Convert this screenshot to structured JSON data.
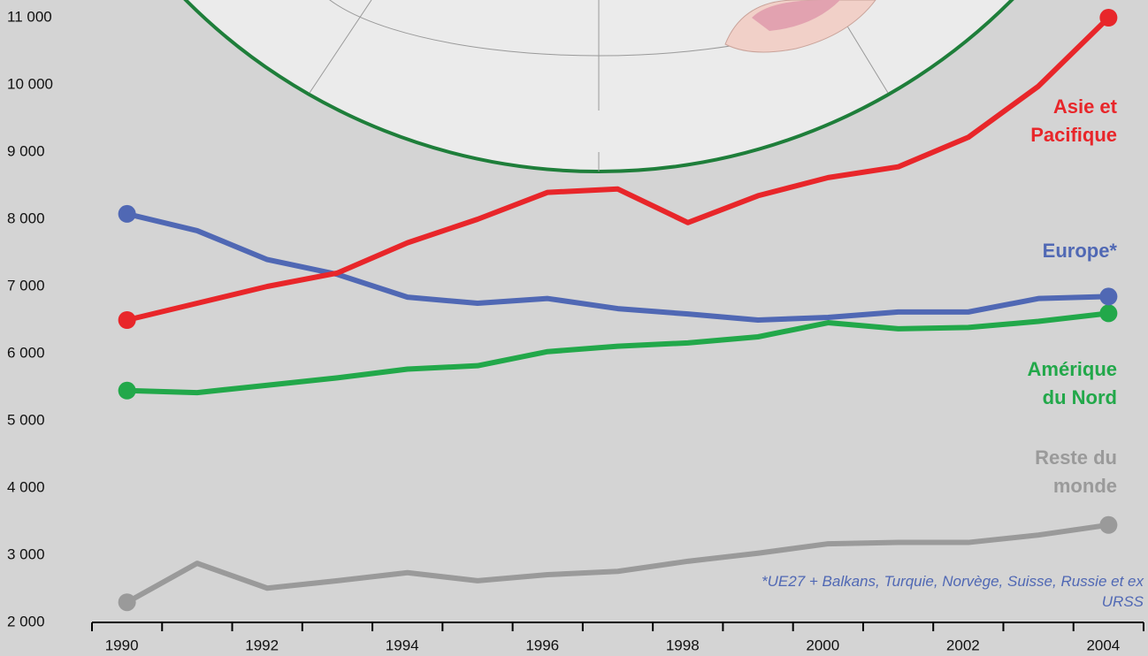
{
  "chart_data": {
    "type": "line",
    "x": [
      1990,
      1991,
      1992,
      1993,
      1994,
      1995,
      1996,
      1997,
      1998,
      1999,
      2000,
      2001,
      2002,
      2003,
      2004
    ],
    "series": [
      {
        "name": "Asie et Pacifique",
        "color": "#e8262a",
        "values": [
          6500,
          6750,
          7000,
          7200,
          7650,
          8000,
          8400,
          8450,
          7950,
          8350,
          8620,
          8780,
          9220,
          9980,
          11000
        ]
      },
      {
        "name": "Europe*",
        "color": "#5068b4",
        "values": [
          8080,
          7830,
          7400,
          7180,
          6840,
          6750,
          6820,
          6670,
          6590,
          6500,
          6540,
          6620,
          6620,
          6820,
          6850
        ]
      },
      {
        "name": "Amérique du Nord",
        "color": "#22a84a",
        "values": [
          5450,
          5420,
          5530,
          5640,
          5770,
          5820,
          6030,
          6110,
          6160,
          6250,
          6460,
          6370,
          6390,
          6480,
          6600
        ]
      },
      {
        "name": "Reste du monde",
        "color": "#9a9a9a",
        "values": [
          2300,
          2880,
          2510,
          2620,
          2740,
          2620,
          2710,
          2760,
          2910,
          3030,
          3170,
          3190,
          3190,
          3300,
          3450
        ]
      }
    ],
    "xlim": [
      1989.5,
      2004.5
    ],
    "xticks": [
      1990,
      1992,
      1994,
      1996,
      1998,
      2000,
      2002,
      2004
    ],
    "ylim": [
      2000,
      11000
    ],
    "yticks": [
      {
        "value": 2000,
        "label": "2 000"
      },
      {
        "value": 3000,
        "label": "3 000"
      },
      {
        "value": 4000,
        "label": "4 000"
      },
      {
        "value": 5000,
        "label": "5 000"
      },
      {
        "value": 6000,
        "label": "6 000"
      },
      {
        "value": 7000,
        "label": "7 000"
      },
      {
        "value": 8000,
        "label": "8 000"
      },
      {
        "value": 9000,
        "label": "9 000"
      },
      {
        "value": 10000,
        "label": "10 000"
      },
      {
        "value": 11000,
        "label": "11 000"
      }
    ],
    "annotation": "*UE27 + Balkans, Turquie, Norvège, Suisse, Russie et ex URSS"
  }
}
